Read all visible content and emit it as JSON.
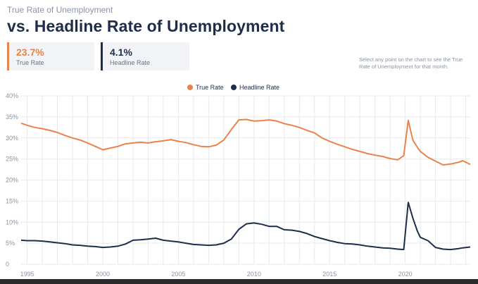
{
  "header": {
    "subtitle": "True Rate of Unemployment",
    "title": "vs. Headline Rate of Unemployment"
  },
  "stats": {
    "true_rate": {
      "value": "23.7%",
      "label": "True Rate"
    },
    "headline_rate": {
      "value": "4.1%",
      "label": "Headline Rate"
    }
  },
  "hint_text": "Select any point on the chart to see the True Rate of Unemployment for that month.",
  "colors": {
    "true_rate": "#e8834a",
    "headline_rate": "#1f2d4a",
    "grid": "#e6e9ee"
  },
  "chart_data": {
    "type": "line",
    "xlim": [
      1994.6,
      2024.3
    ],
    "ylim": [
      0,
      40
    ],
    "yticks": [
      "0",
      "5%",
      "10%",
      "15%",
      "20%",
      "25%",
      "30%",
      "35%",
      "40%"
    ],
    "xticks": [
      "1995",
      "2000",
      "2005",
      "2010",
      "2015",
      "2020"
    ],
    "grid": true,
    "legend_position": "top-center",
    "series": [
      {
        "name": "True Rate",
        "color": "#e8834a",
        "points": [
          [
            1994.6,
            33.5
          ],
          [
            1995.0,
            33.0
          ],
          [
            1995.5,
            32.5
          ],
          [
            1996.0,
            32.2
          ],
          [
            1996.5,
            31.8
          ],
          [
            1997.0,
            31.3
          ],
          [
            1997.5,
            30.6
          ],
          [
            1998.0,
            30.0
          ],
          [
            1998.5,
            29.5
          ],
          [
            1999.0,
            28.8
          ],
          [
            1999.5,
            28.0
          ],
          [
            2000.0,
            27.2
          ],
          [
            2000.5,
            27.6
          ],
          [
            2001.0,
            28.0
          ],
          [
            2001.5,
            28.6
          ],
          [
            2002.0,
            28.8
          ],
          [
            2002.5,
            29.0
          ],
          [
            2003.0,
            28.8
          ],
          [
            2003.5,
            29.1
          ],
          [
            2004.0,
            29.3
          ],
          [
            2004.5,
            29.6
          ],
          [
            2005.0,
            29.2
          ],
          [
            2005.5,
            28.9
          ],
          [
            2006.0,
            28.4
          ],
          [
            2006.5,
            28.0
          ],
          [
            2007.0,
            27.9
          ],
          [
            2007.5,
            28.3
          ],
          [
            2008.0,
            29.5
          ],
          [
            2008.5,
            32.0
          ],
          [
            2009.0,
            34.3
          ],
          [
            2009.5,
            34.4
          ],
          [
            2010.0,
            34.0
          ],
          [
            2010.5,
            34.1
          ],
          [
            2011.0,
            34.3
          ],
          [
            2011.5,
            34.0
          ],
          [
            2012.0,
            33.4
          ],
          [
            2012.5,
            33.0
          ],
          [
            2013.0,
            32.5
          ],
          [
            2013.5,
            31.8
          ],
          [
            2014.0,
            31.2
          ],
          [
            2014.5,
            30.0
          ],
          [
            2015.0,
            29.2
          ],
          [
            2015.5,
            28.5
          ],
          [
            2016.0,
            27.9
          ],
          [
            2016.5,
            27.3
          ],
          [
            2017.0,
            26.8
          ],
          [
            2017.5,
            26.3
          ],
          [
            2018.0,
            25.9
          ],
          [
            2018.5,
            25.6
          ],
          [
            2019.0,
            25.1
          ],
          [
            2019.5,
            24.8
          ],
          [
            2019.9,
            25.8
          ],
          [
            2020.2,
            34.2
          ],
          [
            2020.5,
            29.5
          ],
          [
            2020.8,
            27.8
          ],
          [
            2021.0,
            26.8
          ],
          [
            2021.5,
            25.4
          ],
          [
            2022.0,
            24.5
          ],
          [
            2022.5,
            23.6
          ],
          [
            2023.0,
            23.8
          ],
          [
            2023.5,
            24.2
          ],
          [
            2023.8,
            24.6
          ],
          [
            2024.3,
            23.7
          ]
        ]
      },
      {
        "name": "Headline Rate",
        "color": "#1f2d4a",
        "points": [
          [
            1994.6,
            5.7
          ],
          [
            1995.0,
            5.6
          ],
          [
            1995.5,
            5.6
          ],
          [
            1996.0,
            5.5
          ],
          [
            1996.5,
            5.3
          ],
          [
            1997.0,
            5.1
          ],
          [
            1997.5,
            4.9
          ],
          [
            1998.0,
            4.6
          ],
          [
            1998.5,
            4.5
          ],
          [
            1999.0,
            4.3
          ],
          [
            1999.5,
            4.2
          ],
          [
            2000.0,
            4.0
          ],
          [
            2000.5,
            4.1
          ],
          [
            2001.0,
            4.3
          ],
          [
            2001.5,
            4.8
          ],
          [
            2002.0,
            5.7
          ],
          [
            2002.5,
            5.8
          ],
          [
            2003.0,
            6.0
          ],
          [
            2003.5,
            6.2
          ],
          [
            2004.0,
            5.7
          ],
          [
            2004.5,
            5.5
          ],
          [
            2005.0,
            5.3
          ],
          [
            2005.5,
            5.0
          ],
          [
            2006.0,
            4.7
          ],
          [
            2006.5,
            4.6
          ],
          [
            2007.0,
            4.5
          ],
          [
            2007.5,
            4.6
          ],
          [
            2008.0,
            5.0
          ],
          [
            2008.5,
            6.0
          ],
          [
            2009.0,
            8.3
          ],
          [
            2009.5,
            9.6
          ],
          [
            2010.0,
            9.8
          ],
          [
            2010.5,
            9.5
          ],
          [
            2011.0,
            9.0
          ],
          [
            2011.5,
            9.0
          ],
          [
            2012.0,
            8.2
          ],
          [
            2012.5,
            8.1
          ],
          [
            2013.0,
            7.8
          ],
          [
            2013.5,
            7.3
          ],
          [
            2014.0,
            6.6
          ],
          [
            2014.5,
            6.1
          ],
          [
            2015.0,
            5.6
          ],
          [
            2015.5,
            5.2
          ],
          [
            2016.0,
            4.9
          ],
          [
            2016.5,
            4.8
          ],
          [
            2017.0,
            4.6
          ],
          [
            2017.5,
            4.3
          ],
          [
            2018.0,
            4.1
          ],
          [
            2018.5,
            3.9
          ],
          [
            2019.0,
            3.8
          ],
          [
            2019.5,
            3.6
          ],
          [
            2019.9,
            3.5
          ],
          [
            2020.2,
            14.7
          ],
          [
            2020.5,
            11.0
          ],
          [
            2020.8,
            7.9
          ],
          [
            2021.0,
            6.4
          ],
          [
            2021.5,
            5.6
          ],
          [
            2022.0,
            4.0
          ],
          [
            2022.5,
            3.6
          ],
          [
            2023.0,
            3.5
          ],
          [
            2023.5,
            3.7
          ],
          [
            2023.8,
            3.9
          ],
          [
            2024.3,
            4.1
          ]
        ]
      }
    ]
  }
}
